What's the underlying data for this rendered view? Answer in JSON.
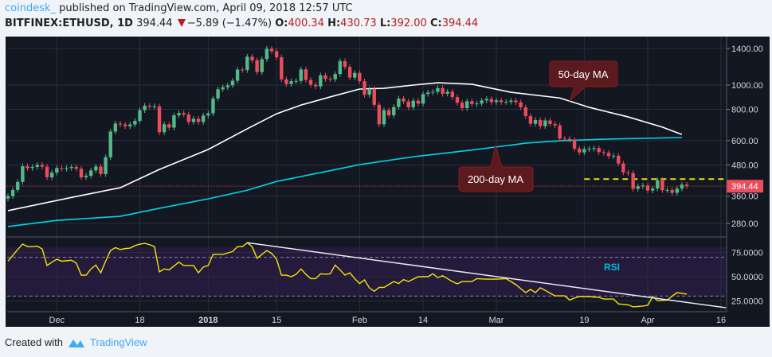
{
  "header": {
    "author": "coindesk_",
    "published": " published on TradingView.com, April 09, 2018 12:57 UTC",
    "symbol": "BITFINEX:ETHUSD, 1D",
    "last": "394.44",
    "change": "−5.89 (−1.47%)",
    "open_label": "O:",
    "open": "400.34",
    "high_label": "H:",
    "high": "430.73",
    "low_label": "L:",
    "low": "392.00",
    "close_label": "C:",
    "close": "394.44",
    "down_icon": "triangle-down-icon"
  },
  "footer": {
    "created_with": "Created with",
    "brand": "TradingView",
    "logo_icon": "tradingview-logo-icon"
  },
  "colors": {
    "background": "#131722",
    "up": "#53b987",
    "down": "#eb4d5c",
    "ma50": "#ffffff",
    "ma200": "#00d4e6",
    "rsi": "#f5e30a",
    "rsi_band": "#241a3b",
    "annotation": "#5a1a1e",
    "price_label": "#eb4d5c"
  },
  "chart_data": {
    "type": "candlestick",
    "scale": "log",
    "grid": true,
    "start_date": "2017-11-21",
    "first_open": 352,
    "closes": [
      360,
      381,
      410,
      474,
      466,
      471,
      480,
      472,
      428,
      447,
      466,
      463,
      466,
      471,
      463,
      428,
      434,
      456,
      473,
      441,
      515,
      652,
      702,
      696,
      684,
      696,
      719,
      794,
      827,
      820,
      822,
      648,
      697,
      676,
      757,
      773,
      763,
      712,
      734,
      712,
      756,
      771,
      884,
      962,
      980,
      997,
      1041,
      1153,
      1148,
      1299,
      1256,
      1127,
      1270,
      1396,
      1366,
      1291,
      1054,
      1010,
      1036,
      1039,
      1155,
      1049,
      1003,
      988,
      1094,
      1058,
      1055,
      1107,
      1247,
      1182,
      1071,
      1118,
      1036,
      915,
      964,
      834,
      697,
      793,
      757,
      817,
      883,
      860,
      815,
      866,
      843,
      921,
      934,
      940,
      973,
      923,
      941,
      895,
      850,
      809,
      862,
      840,
      844,
      868,
      880,
      855,
      869,
      856,
      857,
      867,
      854,
      815,
      752,
      700,
      725,
      685,
      722,
      699,
      690,
      611,
      610,
      604,
      557,
      538,
      555,
      557,
      560,
      540,
      536,
      520,
      522,
      486,
      448,
      445,
      385,
      394,
      397,
      379,
      386,
      417,
      380,
      381,
      371,
      386,
      400,
      394.44
    ],
    "price_ticks": [
      1400,
      1000,
      800,
      600,
      480,
      360,
      280
    ],
    "price_tick_labels": [
      "1400.00",
      "1000.00",
      "800.00",
      "600.00",
      "480.00",
      "360.00",
      "280.00"
    ],
    "last_price": 394.44,
    "last_price_label": "394.44",
    "ma50": {
      "label": "50-day MA",
      "points": [
        [
          "2017-11-21",
          315
        ],
        [
          "2017-12-05",
          359
        ],
        [
          "2017-12-14",
          389
        ],
        [
          "2017-12-22",
          460
        ],
        [
          "2018-01-01",
          553
        ],
        [
          "2018-01-09",
          669
        ],
        [
          "2018-01-15",
          768
        ],
        [
          "2018-01-20",
          832
        ],
        [
          "2018-01-27",
          908
        ],
        [
          "2018-02-01",
          964
        ],
        [
          "2018-02-06",
          971
        ],
        [
          "2018-02-12",
          1000
        ],
        [
          "2018-02-17",
          1022
        ],
        [
          "2018-02-24",
          1008
        ],
        [
          "2018-03-04",
          936
        ],
        [
          "2018-03-14",
          888
        ],
        [
          "2018-03-20",
          815
        ],
        [
          "2018-03-28",
          746
        ],
        [
          "2018-04-04",
          679
        ],
        [
          "2018-04-08",
          635
        ]
      ]
    },
    "ma200": {
      "label": "200-day MA",
      "points": [
        [
          "2017-11-21",
          272
        ],
        [
          "2017-12-01",
          288
        ],
        [
          "2017-12-14",
          299
        ],
        [
          "2017-12-22",
          322
        ],
        [
          "2018-01-01",
          351
        ],
        [
          "2018-01-09",
          380
        ],
        [
          "2018-01-15",
          412
        ],
        [
          "2018-01-23",
          443
        ],
        [
          "2018-02-01",
          481
        ],
        [
          "2018-02-12",
          517
        ],
        [
          "2018-02-25",
          553
        ],
        [
          "2018-03-07",
          586
        ],
        [
          "2018-03-14",
          599
        ],
        [
          "2018-03-23",
          608
        ],
        [
          "2018-04-08",
          617
        ]
      ]
    },
    "resistance": {
      "from": "2018-03-19",
      "to": "2018-04-17",
      "value": 421
    },
    "rsi": {
      "label": "RSI",
      "ticks": [
        75,
        50,
        25
      ],
      "tick_labels": [
        "75.0000",
        "50.0000",
        "25.0000"
      ],
      "band": [
        30,
        70
      ],
      "values": [
        66,
        72,
        78,
        83.6,
        81,
        81,
        81.5,
        78.7,
        61.5,
        65,
        68,
        66,
        66.5,
        67,
        64,
        51.6,
        51.6,
        58,
        62,
        54,
        66,
        77,
        80,
        78,
        79,
        79.5,
        82,
        83.6,
        84.4,
        83,
        81,
        55,
        58,
        57,
        61,
        65,
        61.5,
        61.5,
        61.5,
        54,
        60,
        61.5,
        73,
        73,
        73,
        74.5,
        76,
        81,
        81,
        85,
        81,
        69,
        73,
        77,
        74,
        68,
        51.6,
        51.6,
        50,
        52.5,
        58,
        52.5,
        48,
        48,
        53,
        52.5,
        53,
        62,
        57,
        51.6,
        54,
        48,
        43,
        46.7,
        38.5,
        35,
        39,
        39,
        42,
        45,
        43,
        47,
        45,
        47.5,
        50,
        50,
        50,
        53,
        49,
        51,
        48,
        45,
        42.6,
        45,
        45,
        45,
        48,
        47.7,
        47.5,
        47.5,
        47.5,
        47.7,
        48,
        45,
        41.8,
        37.7,
        33.6,
        36.9,
        33.6,
        38.5,
        36,
        33,
        30.3,
        30.3,
        30.3,
        26,
        28,
        29.5,
        29.5,
        29.5,
        29,
        28.7,
        27,
        27,
        27,
        22,
        21.5,
        21,
        18.9,
        19.3,
        19.7,
        20.5,
        29.5,
        25.4,
        25.7,
        26,
        30,
        33.6,
        32.8,
        32
      ],
      "trendline": [
        [
          "2018-01-09",
          85
        ],
        [
          "2018-04-17",
          18
        ]
      ]
    },
    "x_ticks": [
      {
        "label": "Dec",
        "date": "2017-12-01"
      },
      {
        "label": "18",
        "date": "2017-12-18"
      },
      {
        "label": "2018",
        "date": "2018-01-01",
        "bold": true
      },
      {
        "label": "15",
        "date": "2018-01-15"
      },
      {
        "label": "Feb",
        "date": "2018-02-01"
      },
      {
        "label": "14",
        "date": "2018-02-14"
      },
      {
        "label": "Mar",
        "date": "2018-03-01"
      },
      {
        "label": "19",
        "date": "2018-03-19"
      },
      {
        "label": "Apr",
        "date": "2018-04-01"
      },
      {
        "label": "16",
        "date": "2018-04-16"
      }
    ]
  }
}
